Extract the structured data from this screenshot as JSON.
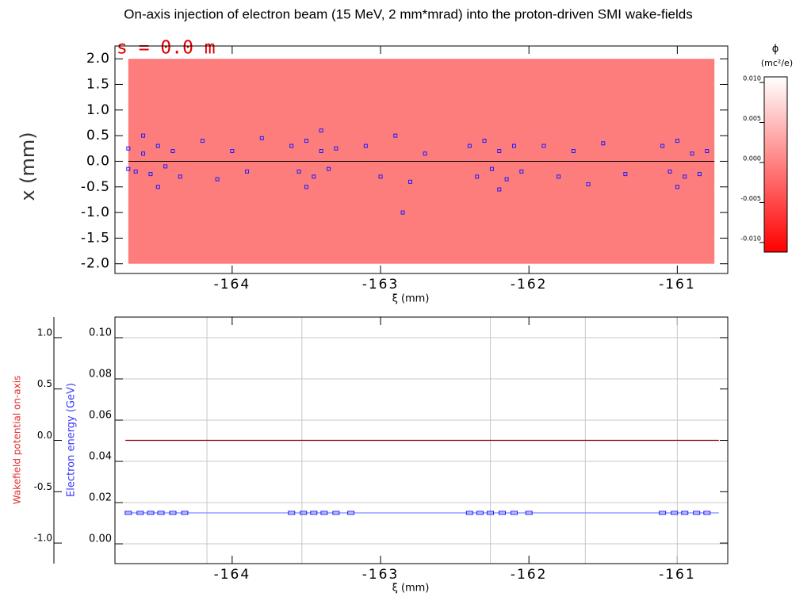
{
  "chart_data": [
    {
      "type": "scatter",
      "title": "On-axis injection of electron beam (15 MeV, 2 mm*mrad) into the proton-driven SMI wake-fields",
      "annotation": "s = 0.0 m",
      "xlabel": "ξ (mm)",
      "ylabel": "x (mm)",
      "xlim": [
        -164.79,
        -160.66
      ],
      "xticks": [
        -164,
        -163,
        -162,
        -161
      ],
      "ylim": [
        -2.19,
        2.25
      ],
      "yticks": [
        {
          "value": 2.0,
          "label": "2.0"
        },
        {
          "value": 1.5,
          "label": "1.5"
        },
        {
          "value": 1.0,
          "label": "1.0"
        },
        {
          "value": 0.5,
          "label": "0.5"
        },
        {
          "value": 0.0,
          "label": "0.0"
        },
        {
          "value": -0.5,
          "label": "-0.5"
        },
        {
          "value": -1.0,
          "label": "-1.0"
        },
        {
          "value": -1.5,
          "label": "-1.5"
        },
        {
          "value": -2.0,
          "label": "-2.0"
        }
      ],
      "field_extent": {
        "x": [
          -164.7,
          -160.75
        ],
        "y": [
          -2.0,
          2.0
        ]
      },
      "field_color": "#fd7d7d",
      "color": "#1a1aff",
      "x": [
        -164.7,
        -164.65,
        -164.6,
        -164.55,
        -164.5,
        -164.45,
        -164.4,
        -164.35,
        -164.7,
        -164.6,
        -164.5,
        -164.2,
        -164.1,
        -164.0,
        -163.9,
        -163.8,
        -163.6,
        -163.55,
        -163.5,
        -163.45,
        -163.4,
        -163.35,
        -163.3,
        -163.5,
        -163.4,
        -163.1,
        -163.0,
        -162.9,
        -162.8,
        -162.7,
        -162.85,
        -162.4,
        -162.35,
        -162.3,
        -162.25,
        -162.2,
        -162.15,
        -162.1,
        -162.2,
        -162.05,
        -161.9,
        -161.8,
        -161.7,
        -161.6,
        -161.5,
        -161.35,
        -161.1,
        -161.05,
        -161.0,
        -160.95,
        -160.9,
        -160.85,
        -161.0,
        -160.8
      ],
      "values": [
        0.25,
        -0.2,
        0.15,
        -0.25,
        0.3,
        -0.1,
        0.2,
        -0.3,
        -0.15,
        0.5,
        -0.5,
        0.4,
        -0.35,
        0.2,
        -0.2,
        0.45,
        0.3,
        -0.2,
        0.4,
        -0.3,
        0.2,
        -0.15,
        0.25,
        -0.5,
        0.6,
        0.3,
        -0.3,
        0.5,
        -0.4,
        0.15,
        -1.0,
        0.3,
        -0.3,
        0.4,
        -0.15,
        0.2,
        -0.35,
        0.3,
        -0.55,
        -0.2,
        0.3,
        -0.3,
        0.2,
        -0.45,
        0.35,
        -0.25,
        0.3,
        -0.2,
        0.4,
        -0.3,
        0.15,
        -0.25,
        -0.5,
        0.2
      ],
      "colorbar": {
        "title": "ϕ",
        "units": "(mc²/e)",
        "lim": [
          -0.0112,
          0.0107
        ],
        "colors": [
          "#ffffff",
          "#ff0000"
        ],
        "ticks": [
          {
            "value": 0.01,
            "label": "0.010"
          },
          {
            "value": 0.005,
            "label": "0.005"
          },
          {
            "value": 0.0,
            "label": "0.000"
          },
          {
            "value": -0.005,
            "label": "-0.005"
          },
          {
            "value": -0.01,
            "label": "-0.010"
          }
        ]
      }
    },
    {
      "type": "line",
      "xlabel": "ξ (mm)",
      "ylabel": "Wakefield potential on-axis",
      "y2label": "Electron energy (GeV)",
      "xlim": [
        -164.79,
        -160.66
      ],
      "xticks": [
        -164,
        -163,
        -162,
        -161
      ],
      "ylim": [
        -1.2,
        1.2
      ],
      "yticks": [
        {
          "value": 1.0,
          "label": "1.0"
        },
        {
          "value": 0.5,
          "label": "0.5"
        },
        {
          "value": 0.0,
          "label": "0.0"
        },
        {
          "value": -0.5,
          "label": "-0.5"
        },
        {
          "value": -1.0,
          "label": "-1.0"
        }
      ],
      "y2lim": [
        -0.0096,
        0.11
      ],
      "y2ticks": [
        {
          "value": 0.1,
          "label": "0.10"
        },
        {
          "value": 0.08,
          "label": "0.08"
        },
        {
          "value": 0.06,
          "label": "0.06"
        },
        {
          "value": 0.04,
          "label": "0.04"
        },
        {
          "value": 0.02,
          "label": "0.02"
        },
        {
          "value": 0.0,
          "label": "0.00"
        }
      ],
      "grid": true,
      "vlines": [
        -164.17,
        -163.53,
        -162.26,
        -161.62,
        -161.0
      ],
      "series": [
        {
          "type": "line",
          "color": "#8b0000",
          "x": [
            -164.72,
            -160.72
          ],
          "values": [
            0.0,
            0.0
          ]
        },
        {
          "type": "line",
          "color": "#7c8cff",
          "axis": "y2",
          "x": [
            -164.72,
            -160.72
          ],
          "values": [
            0.015,
            0.015
          ]
        },
        {
          "type": "scatter",
          "color": "#1a1aff",
          "axis": "y2",
          "x": [
            -164.7,
            -164.62,
            -164.55,
            -164.48,
            -164.4,
            -164.32,
            -163.6,
            -163.52,
            -163.45,
            -163.38,
            -163.3,
            -163.2,
            -162.4,
            -162.33,
            -162.26,
            -162.18,
            -162.1,
            -162.0,
            -161.1,
            -161.02,
            -160.95,
            -160.87,
            -160.8
          ],
          "values": [
            0.015,
            0.015,
            0.015,
            0.015,
            0.015,
            0.015,
            0.015,
            0.015,
            0.015,
            0.015,
            0.015,
            0.015,
            0.015,
            0.015,
            0.015,
            0.015,
            0.015,
            0.015,
            0.015,
            0.015,
            0.015,
            0.015,
            0.015
          ]
        }
      ]
    }
  ]
}
